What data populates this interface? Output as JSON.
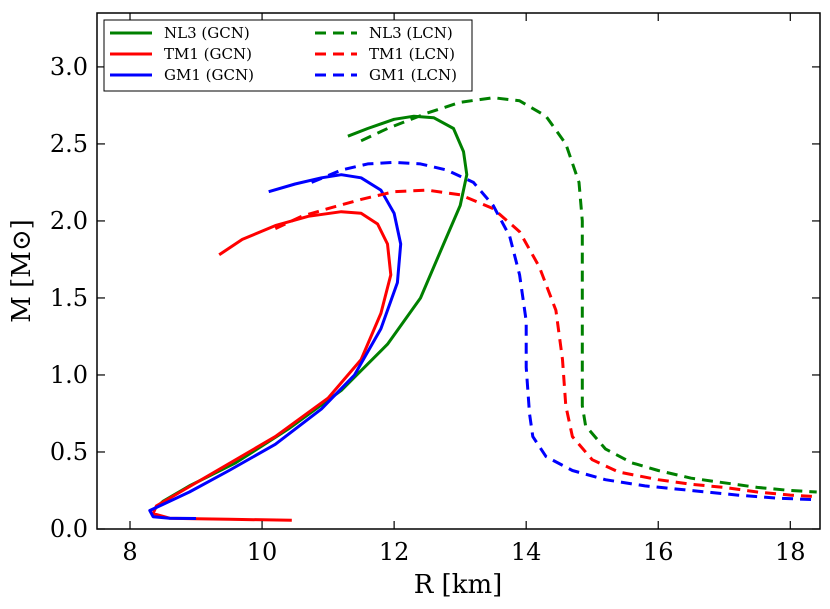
{
  "chart_data": {
    "type": "line",
    "xlabel": "R [km]",
    "ylabel": "M [M⊙]",
    "xlim": [
      7.5,
      18.45
    ],
    "ylim": [
      0.0,
      3.35
    ],
    "xticks": [
      "8",
      "10",
      "12",
      "14",
      "16",
      "18"
    ],
    "yticks": [
      "0.0",
      "0.5",
      "1.0",
      "1.5",
      "2.0",
      "2.5",
      "3.0"
    ],
    "legend_position": "top-left",
    "grid": false,
    "series": [
      {
        "name": "NL3 (GCN)",
        "color": "#008000",
        "style": "solid",
        "points": [
          [
            11.3,
            2.55
          ],
          [
            11.6,
            2.6
          ],
          [
            12.0,
            2.66
          ],
          [
            12.3,
            2.68
          ],
          [
            12.6,
            2.67
          ],
          [
            12.9,
            2.6
          ],
          [
            13.05,
            2.45
          ],
          [
            13.1,
            2.3
          ],
          [
            13.0,
            2.1
          ],
          [
            12.75,
            1.85
          ],
          [
            12.4,
            1.5
          ],
          [
            11.9,
            1.2
          ],
          [
            11.2,
            0.9
          ],
          [
            10.4,
            0.65
          ],
          [
            9.6,
            0.43
          ],
          [
            8.9,
            0.28
          ],
          [
            8.5,
            0.18
          ],
          [
            8.35,
            0.12
          ]
        ]
      },
      {
        "name": "TM1 (GCN)",
        "color": "#ff0000",
        "style": "solid",
        "points": [
          [
            9.35,
            1.78
          ],
          [
            9.7,
            1.88
          ],
          [
            10.2,
            1.97
          ],
          [
            10.7,
            2.03
          ],
          [
            11.2,
            2.06
          ],
          [
            11.5,
            2.05
          ],
          [
            11.75,
            1.98
          ],
          [
            11.9,
            1.85
          ],
          [
            11.95,
            1.65
          ],
          [
            11.8,
            1.4
          ],
          [
            11.5,
            1.1
          ],
          [
            11.0,
            0.85
          ],
          [
            10.2,
            0.6
          ],
          [
            9.4,
            0.4
          ],
          [
            8.8,
            0.25
          ],
          [
            8.4,
            0.15
          ],
          [
            8.35,
            0.1
          ],
          [
            8.6,
            0.07
          ],
          [
            9.0,
            0.066
          ],
          [
            9.5,
            0.063
          ],
          [
            10.0,
            0.06
          ],
          [
            10.45,
            0.057
          ]
        ]
      },
      {
        "name": "GM1 (GCN)",
        "color": "#0000ff",
        "style": "solid",
        "points": [
          [
            10.1,
            2.19
          ],
          [
            10.5,
            2.24
          ],
          [
            10.9,
            2.28
          ],
          [
            11.2,
            2.3
          ],
          [
            11.5,
            2.28
          ],
          [
            11.8,
            2.2
          ],
          [
            12.0,
            2.05
          ],
          [
            12.1,
            1.85
          ],
          [
            12.05,
            1.6
          ],
          [
            11.8,
            1.3
          ],
          [
            11.4,
            1.0
          ],
          [
            10.9,
            0.78
          ],
          [
            10.2,
            0.55
          ],
          [
            9.5,
            0.38
          ],
          [
            8.9,
            0.24
          ],
          [
            8.5,
            0.16
          ],
          [
            8.3,
            0.12
          ],
          [
            8.35,
            0.08
          ],
          [
            8.6,
            0.07
          ],
          [
            9.0,
            0.068
          ]
        ]
      },
      {
        "name": "NL3 (LCN)",
        "color": "#008000",
        "style": "dashed",
        "points": [
          [
            11.5,
            2.52
          ],
          [
            11.9,
            2.6
          ],
          [
            12.5,
            2.7
          ],
          [
            13.0,
            2.77
          ],
          [
            13.5,
            2.8
          ],
          [
            13.9,
            2.78
          ],
          [
            14.3,
            2.68
          ],
          [
            14.6,
            2.5
          ],
          [
            14.8,
            2.25
          ],
          [
            14.85,
            2.0
          ],
          [
            14.85,
            1.7
          ],
          [
            14.85,
            1.4
          ],
          [
            14.85,
            1.1
          ],
          [
            14.85,
            0.8
          ],
          [
            14.9,
            0.67
          ],
          [
            15.2,
            0.52
          ],
          [
            15.6,
            0.43
          ],
          [
            16.0,
            0.38
          ],
          [
            16.5,
            0.33
          ],
          [
            17.0,
            0.3
          ],
          [
            17.5,
            0.27
          ],
          [
            18.0,
            0.25
          ],
          [
            18.4,
            0.24
          ]
        ]
      },
      {
        "name": "TM1 (LCN)",
        "color": "#ff0000",
        "style": "dashed",
        "points": [
          [
            10.2,
            1.95
          ],
          [
            10.6,
            2.03
          ],
          [
            11.0,
            2.08
          ],
          [
            11.5,
            2.14
          ],
          [
            12.0,
            2.19
          ],
          [
            12.5,
            2.2
          ],
          [
            13.0,
            2.17
          ],
          [
            13.5,
            2.08
          ],
          [
            13.9,
            1.93
          ],
          [
            14.2,
            1.7
          ],
          [
            14.45,
            1.42
          ],
          [
            14.55,
            1.1
          ],
          [
            14.6,
            0.8
          ],
          [
            14.7,
            0.6
          ],
          [
            15.0,
            0.45
          ],
          [
            15.4,
            0.37
          ],
          [
            16.0,
            0.32
          ],
          [
            16.5,
            0.29
          ],
          [
            17.0,
            0.27
          ],
          [
            17.5,
            0.24
          ],
          [
            18.0,
            0.22
          ],
          [
            18.4,
            0.21
          ]
        ]
      },
      {
        "name": "GM1 (LCN)",
        "color": "#0000ff",
        "style": "dashed",
        "points": [
          [
            10.75,
            2.25
          ],
          [
            11.2,
            2.33
          ],
          [
            11.6,
            2.37
          ],
          [
            12.0,
            2.38
          ],
          [
            12.4,
            2.37
          ],
          [
            12.8,
            2.33
          ],
          [
            13.2,
            2.25
          ],
          [
            13.5,
            2.1
          ],
          [
            13.75,
            1.9
          ],
          [
            13.9,
            1.65
          ],
          [
            14.0,
            1.35
          ],
          [
            14.0,
            1.05
          ],
          [
            14.05,
            0.75
          ],
          [
            14.1,
            0.6
          ],
          [
            14.3,
            0.47
          ],
          [
            14.7,
            0.38
          ],
          [
            15.2,
            0.32
          ],
          [
            15.8,
            0.28
          ],
          [
            16.5,
            0.25
          ],
          [
            17.2,
            0.22
          ],
          [
            17.8,
            0.2
          ],
          [
            18.4,
            0.19
          ]
        ]
      }
    ]
  }
}
